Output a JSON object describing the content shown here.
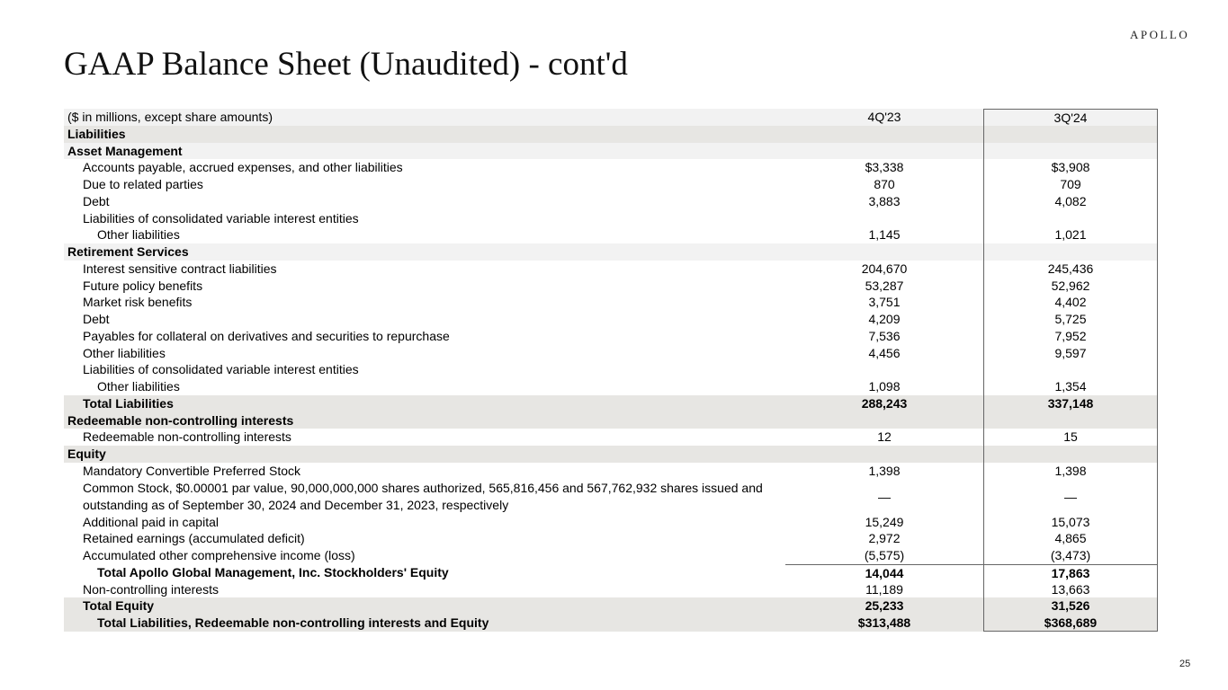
{
  "logo": "APOLLO",
  "title": "GAAP Balance Sheet (Unaudited) - cont'd",
  "page_number": "25",
  "table": {
    "header": {
      "label": "($ in millions, except share amounts)",
      "col1": "4Q'23",
      "col2": "3Q'24"
    },
    "rows": [
      {
        "label": "Liabilities",
        "v1": "",
        "v2": "",
        "style": "section",
        "indent": 0
      },
      {
        "label": "Asset Management",
        "v1": "",
        "v2": "",
        "style": "subsection",
        "indent": 0
      },
      {
        "label": "Accounts payable, accrued expenses, and other liabilities",
        "v1": "$3,338",
        "v2": "$3,908",
        "indent": 1
      },
      {
        "label": "Due to related parties",
        "v1": "870",
        "v2": "709",
        "indent": 1
      },
      {
        "label": "Debt",
        "v1": "3,883",
        "v2": "4,082",
        "indent": 1
      },
      {
        "label": "Liabilities of consolidated variable interest entities",
        "v1": "",
        "v2": "",
        "indent": 1
      },
      {
        "label": "Other liabilities",
        "v1": "1,145",
        "v2": "1,021",
        "indent": 2
      },
      {
        "label": "Retirement Services",
        "v1": "",
        "v2": "",
        "style": "subsection",
        "indent": 0
      },
      {
        "label": "Interest sensitive contract liabilities",
        "v1": "204,670",
        "v2": "245,436",
        "indent": 1
      },
      {
        "label": "Future policy benefits",
        "v1": "53,287",
        "v2": "52,962",
        "indent": 1
      },
      {
        "label": "Market risk benefits",
        "v1": "3,751",
        "v2": "4,402",
        "indent": 1
      },
      {
        "label": "Debt",
        "v1": "4,209",
        "v2": "5,725",
        "indent": 1
      },
      {
        "label": "Payables for collateral on derivatives and securities to repurchase",
        "v1": "7,536",
        "v2": "7,952",
        "indent": 1
      },
      {
        "label": "Other liabilities",
        "v1": "4,456",
        "v2": "9,597",
        "indent": 1
      },
      {
        "label": "Liabilities of consolidated variable interest entities",
        "v1": "",
        "v2": "",
        "indent": 1
      },
      {
        "label": "Other liabilities",
        "v1": "1,098",
        "v2": "1,354",
        "indent": 2
      },
      {
        "label": "Total Liabilities",
        "v1": "288,243",
        "v2": "337,148",
        "style": "total",
        "indent": 1
      },
      {
        "label": "Redeemable non-controlling interests",
        "v1": "",
        "v2": "",
        "style": "section",
        "indent": 0
      },
      {
        "label": "Redeemable non-controlling interests",
        "v1": "12",
        "v2": "15",
        "indent": 1
      },
      {
        "label": "Equity",
        "v1": "",
        "v2": "",
        "style": "section",
        "indent": 0
      },
      {
        "label": "Mandatory Convertible Preferred Stock",
        "v1": "1,398",
        "v2": "1,398",
        "indent": 1
      },
      {
        "label": "Common Stock, $0.00001 par value, 90,000,000,000 shares authorized, 565,816,456 and 567,762,932 shares issued and outstanding as of September 30, 2024 and December 31, 2023, respectively",
        "v1": "—",
        "v2": "—",
        "indent": 1,
        "tall": true
      },
      {
        "label": "Additional paid in capital",
        "v1": "15,249",
        "v2": "15,073",
        "indent": 1
      },
      {
        "label": "Retained earnings (accumulated deficit)",
        "v1": "2,972",
        "v2": "4,865",
        "indent": 1
      },
      {
        "label": "Accumulated other comprehensive income (loss)",
        "v1": "(5,575)",
        "v2": "(3,473)",
        "indent": 1
      },
      {
        "label": "Total Apollo Global Management, Inc. Stockholders' Equity",
        "v1": "14,044",
        "v2": "17,863",
        "style": "subtotal",
        "indent": 2
      },
      {
        "label": "Non-controlling interests",
        "v1": "11,189",
        "v2": "13,663",
        "indent": 1
      },
      {
        "label": "Total Equity",
        "v1": "25,233",
        "v2": "31,526",
        "style": "total",
        "indent": 1
      },
      {
        "label": "Total Liabilities, Redeemable non-controlling interests and Equity",
        "v1": "$313,488",
        "v2": "$368,689",
        "style": "total",
        "indent": 2
      }
    ]
  }
}
